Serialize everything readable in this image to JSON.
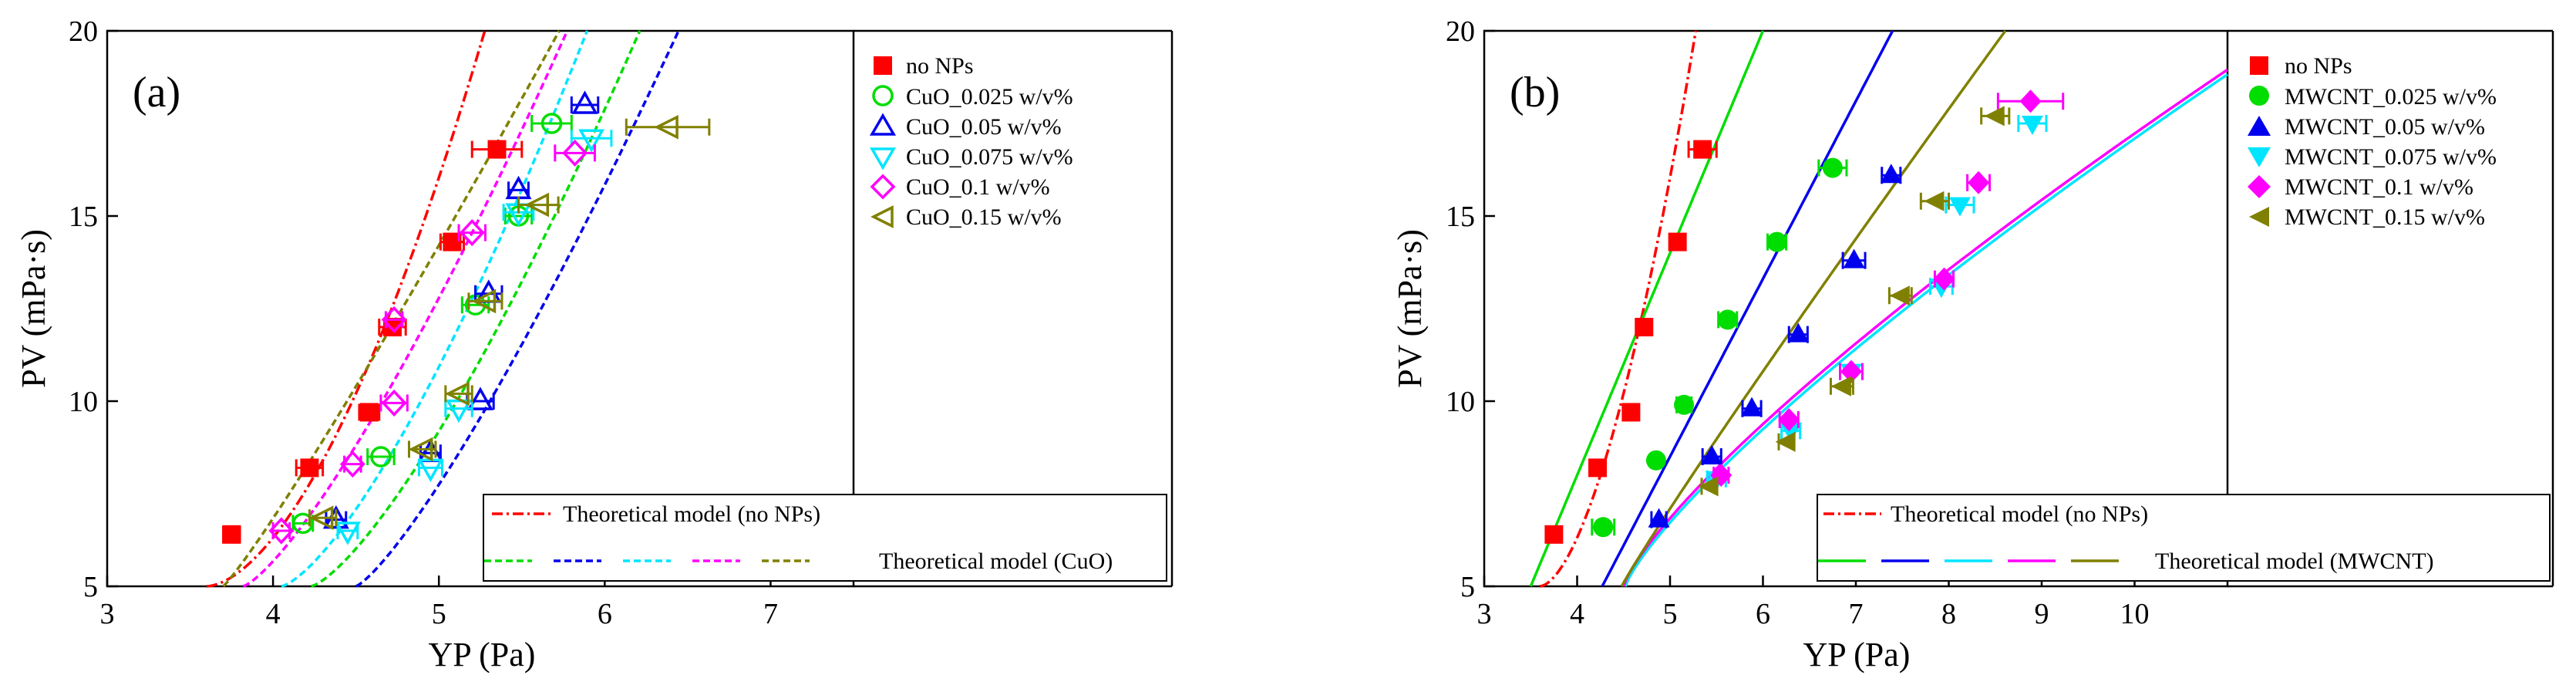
{
  "chart_data": [
    {
      "type": "scatter",
      "panel_label": "(a)",
      "xlabel": "YP (Pa)",
      "ylabel": "PV (mPa·s)",
      "xlim": [
        3,
        7.5
      ],
      "ylim": [
        5,
        20
      ],
      "xticks": [
        3,
        4,
        5,
        6,
        7
      ],
      "yticks": [
        5,
        10,
        15,
        20
      ],
      "xtick_labels": [
        "3",
        "4",
        "5",
        "6",
        "7"
      ],
      "ytick_labels": [
        "5",
        "10",
        "15",
        "20"
      ],
      "legend_location": "top-right",
      "series": [
        {
          "name": "no NPs",
          "color": "#ff0000",
          "marker": "square-filled",
          "x": [
            3.75,
            4.22,
            4.58,
            4.72,
            5.08,
            5.35
          ],
          "xerr": [
            0.05,
            0.08,
            0.06,
            0.08,
            0.07,
            0.15
          ],
          "y": [
            6.4,
            8.2,
            9.7,
            12.0,
            14.3,
            16.8
          ]
        },
        {
          "name": "CuO_0.025 w/v%",
          "color": "#00dd00",
          "marker": "circle-open",
          "x": [
            4.18,
            4.65,
            5.22,
            5.48,
            5.68
          ],
          "xerr": [
            0.06,
            0.08,
            0.08,
            0.08,
            0.12
          ],
          "y": [
            6.7,
            8.5,
            12.6,
            15.0,
            17.5
          ]
        },
        {
          "name": "CuO_0.05 w/v%",
          "color": "#0000ee",
          "marker": "triangle-up-open",
          "x": [
            4.38,
            4.95,
            5.25,
            5.3,
            5.48,
            5.88
          ],
          "xerr": [
            0.06,
            0.06,
            0.08,
            0.08,
            0.06,
            0.08
          ],
          "y": [
            6.8,
            8.6,
            10.0,
            12.9,
            15.7,
            18.0
          ]
        },
        {
          "name": "CuO_0.075 w/v%",
          "color": "#00e5ff",
          "marker": "triangle-down-open",
          "x": [
            4.45,
            4.95,
            5.12,
            5.48,
            5.92
          ],
          "xerr": [
            0.06,
            0.07,
            0.08,
            0.09,
            0.12
          ],
          "y": [
            6.5,
            8.2,
            9.8,
            15.1,
            17.1
          ]
        },
        {
          "name": "CuO_0.1 w/v%",
          "color": "#ff00ff",
          "marker": "diamond-open",
          "x": [
            4.05,
            4.48,
            4.73,
            4.73,
            5.2,
            5.82
          ],
          "xerr": [
            0.05,
            0.05,
            0.08,
            0.05,
            0.08,
            0.12
          ],
          "y": [
            6.5,
            8.3,
            9.95,
            12.2,
            14.55,
            16.7
          ]
        },
        {
          "name": "CuO_0.15 w/v%",
          "color": "#808000",
          "marker": "triangle-left-open",
          "x": [
            4.3,
            4.9,
            5.12,
            5.28,
            5.6,
            6.38
          ],
          "xerr": [
            0.08,
            0.08,
            0.08,
            0.1,
            0.12,
            0.25
          ],
          "y": [
            6.85,
            8.7,
            10.2,
            12.7,
            15.3,
            17.4
          ]
        }
      ],
      "model_legend": [
        "Theoretical model (no NPs)",
        "Theoretical model (CuO)"
      ],
      "model_curves": [
        {
          "series": "no NPs",
          "color": "#ff0000",
          "dash": "dashdot",
          "a": 3.6,
          "b": 6.23,
          "p": 1.7
        },
        {
          "series": "CuO_0.025 w/v%",
          "color": "#00dd00",
          "dash": "dash",
          "a": 4.23,
          "b": 5.96,
          "p": 1.35
        },
        {
          "series": "CuO_0.05 w/v%",
          "color": "#0000ee",
          "dash": "dash",
          "a": 4.5,
          "b": 6.53,
          "p": 1.25
        },
        {
          "series": "CuO_0.075 w/v%",
          "color": "#00e5ff",
          "dash": "dash",
          "a": 4.05,
          "b": 6.37,
          "p": 1.4
        },
        {
          "series": "CuO_0.1 w/v%",
          "color": "#ff00ff",
          "dash": "dash",
          "a": 3.82,
          "b": 6.28,
          "p": 1.3
        },
        {
          "series": "CuO_0.15 w/v%",
          "color": "#808000",
          "dash": "dash",
          "a": 3.7,
          "b": 6.9,
          "p": 1.1
        }
      ]
    },
    {
      "type": "scatter",
      "panel_label": "(b)",
      "xlabel": "YP (Pa)",
      "ylabel": "PV (mPa·s)",
      "xlim": [
        3,
        11
      ],
      "ylim": [
        5,
        20
      ],
      "xticks": [
        3,
        4,
        5,
        6,
        7,
        8,
        9,
        10
      ],
      "yticks": [
        5,
        10,
        15,
        20
      ],
      "xtick_labels": [
        "3",
        "4",
        "5",
        "6",
        "7",
        "8",
        "9",
        "10"
      ],
      "ytick_labels": [
        "5",
        "10",
        "15",
        "20"
      ],
      "legend_location": "top-right",
      "series": [
        {
          "name": "no NPs",
          "color": "#ff0000",
          "marker": "square-filled",
          "x": [
            3.75,
            4.22,
            4.58,
            4.72,
            5.08,
            5.35
          ],
          "xerr": [
            0.05,
            0.08,
            0.06,
            0.08,
            0.07,
            0.15
          ],
          "y": [
            6.4,
            8.2,
            9.7,
            12.0,
            14.3,
            16.8
          ]
        },
        {
          "name": "MWCNT_0.025 w/v%",
          "color": "#00dd00",
          "marker": "circle-filled",
          "x": [
            4.28,
            4.85,
            5.15,
            5.62,
            6.15,
            6.75
          ],
          "xerr": [
            0.12,
            0.05,
            0.08,
            0.1,
            0.1,
            0.15
          ],
          "y": [
            6.6,
            8.4,
            9.9,
            12.2,
            14.3,
            16.3
          ]
        },
        {
          "name": "MWCNT_0.05 w/v%",
          "color": "#0000ee",
          "marker": "triangle-up-filled",
          "x": [
            4.88,
            5.45,
            5.88,
            6.38,
            6.98,
            7.38
          ],
          "xerr": [
            0.08,
            0.1,
            0.1,
            0.1,
            0.12,
            0.1
          ],
          "y": [
            6.8,
            8.5,
            9.8,
            11.8,
            13.8,
            16.1
          ]
        },
        {
          "name": "MWCNT_0.075 w/v%",
          "color": "#00e5ff",
          "marker": "triangle-down-filled",
          "x": [
            5.5,
            6.3,
            6.95,
            7.92,
            8.12,
            8.9
          ],
          "xerr": [
            0.1,
            0.1,
            0.12,
            0.12,
            0.15,
            0.15
          ],
          "y": [
            7.9,
            9.2,
            10.8,
            13.1,
            15.3,
            17.5
          ]
        },
        {
          "name": "MWCNT_0.1 w/v%",
          "color": "#ff00ff",
          "marker": "diamond-filled",
          "x": [
            5.55,
            6.28,
            6.95,
            7.95,
            8.32,
            8.88
          ],
          "xerr": [
            0.08,
            0.1,
            0.12,
            0.1,
            0.12,
            0.35
          ],
          "y": [
            8.0,
            9.5,
            10.8,
            13.3,
            15.9,
            18.1
          ]
        },
        {
          "name": "MWCNT_0.15 w/v%",
          "color": "#808000",
          "marker": "triangle-left-filled",
          "x": [
            5.42,
            6.25,
            6.85,
            7.48,
            7.85,
            8.5
          ],
          "xerr": [
            0.08,
            0.08,
            0.12,
            0.12,
            0.15,
            0.15
          ],
          "y": [
            7.7,
            8.9,
            10.4,
            12.85,
            15.4,
            17.7
          ]
        }
      ],
      "model_legend": [
        "Theoretical model (no NPs)",
        "Theoretical model (MWCNT)"
      ],
      "model_curves": [
        {
          "series": "no NPs",
          "color": "#ff0000",
          "dash": "dashdot",
          "a": 3.6,
          "b": 6.23,
          "p": 1.7
        },
        {
          "series": "MWCNT_0.025 w/v%",
          "color": "#00dd00",
          "dash": "solid",
          "a": 3.5,
          "b": 6.0,
          "p": 1.0
        },
        {
          "series": "MWCNT_0.05 w/v%",
          "color": "#0000ee",
          "dash": "solid",
          "a": 4.27,
          "b": 4.8,
          "p": 1.0
        },
        {
          "series": "MWCNT_0.075 w/v%",
          "color": "#00e5ff",
          "dash": "solid",
          "a": 4.52,
          "b": 3.1,
          "p": 0.8
        },
        {
          "series": "MWCNT_0.1 w/v%",
          "color": "#ff00ff",
          "dash": "solid",
          "a": 4.5,
          "b": 3.18,
          "p": 0.79
        },
        {
          "series": "MWCNT_0.15 w/v%",
          "color": "#808000",
          "dash": "solid",
          "a": 4.48,
          "b": 3.9,
          "p": 0.95
        }
      ]
    }
  ]
}
